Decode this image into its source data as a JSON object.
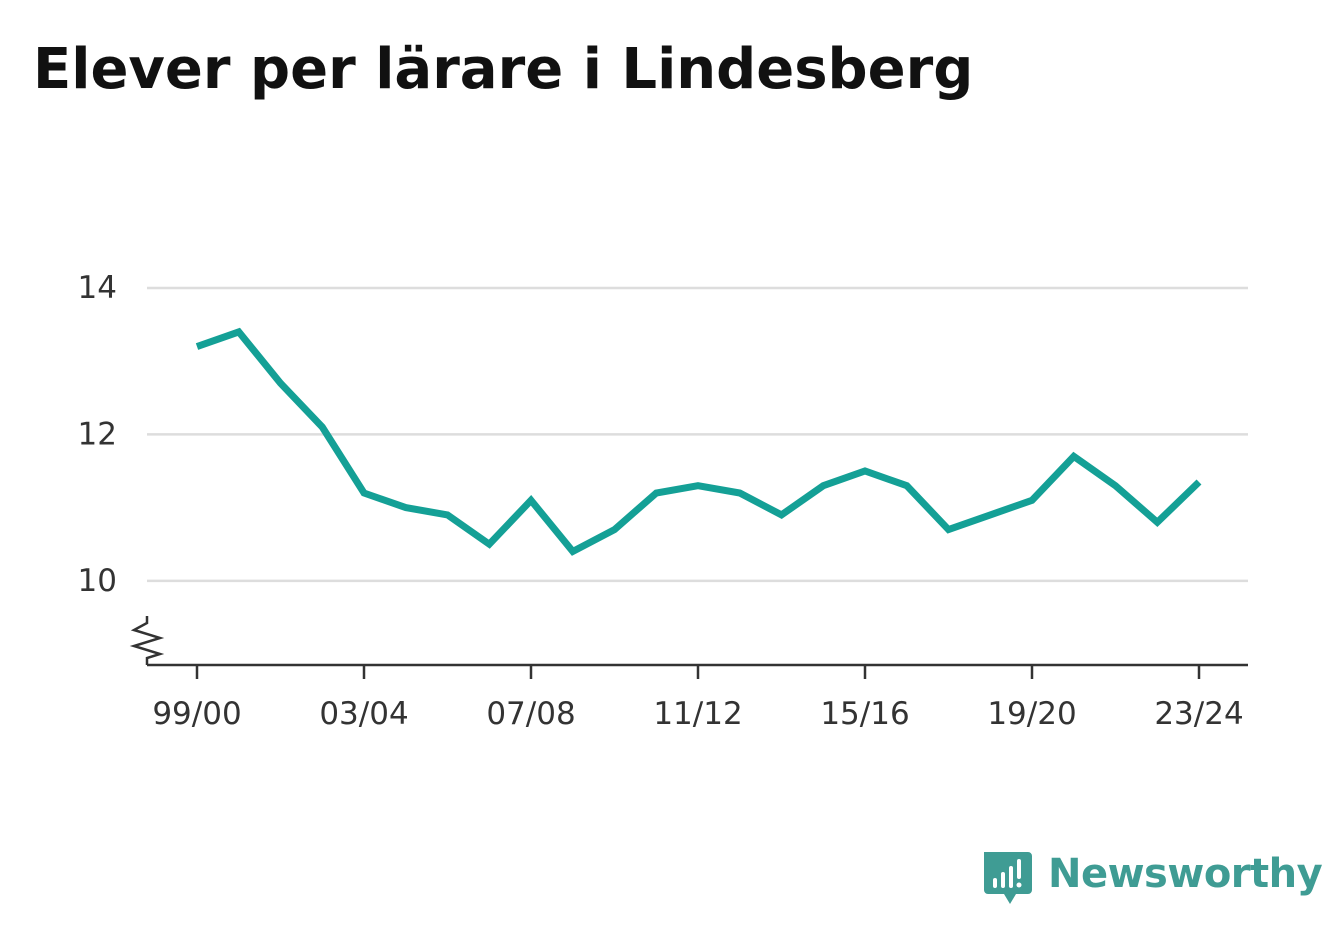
{
  "title": "Elever per lärare i Lindesberg",
  "brand": {
    "name": "Newsworthy",
    "color": "#3f9c94",
    "icon": "newsworthy-logo-icon"
  },
  "colors": {
    "line": "#14a096",
    "grid": "#dddddd",
    "axis": "#333333"
  },
  "chart_data": {
    "type": "line",
    "title": "Elever per lärare i Lindesberg",
    "xlabel": "",
    "ylabel": "",
    "ylim": [
      8.85,
      14
    ],
    "y_ticks": [
      10,
      12,
      14
    ],
    "y_tick_labels": [
      "10",
      "12",
      "14"
    ],
    "y_axis_break": true,
    "x_tick_labels": [
      "99/00",
      "03/04",
      "07/08",
      "11/12",
      "15/16",
      "19/20",
      "23/24"
    ],
    "x_tick_positions": [
      "99/00",
      "03/04",
      "07/08",
      "11/12",
      "15/16",
      "19/20",
      "23/24"
    ],
    "grid": true,
    "legend": "none",
    "categories": [
      "99/00",
      "00/01",
      "01/02",
      "02/03",
      "03/04",
      "04/05",
      "05/06",
      "06/07",
      "07/08",
      "08/09",
      "09/10",
      "10/11",
      "11/12",
      "12/13",
      "13/14",
      "14/15",
      "15/16",
      "16/17",
      "17/18",
      "18/19",
      "19/20",
      "20/21",
      "21/22",
      "22/23",
      "23/24"
    ],
    "values": [
      13.2,
      13.4,
      12.7,
      12.1,
      11.2,
      11.0,
      10.9,
      10.5,
      11.1,
      10.4,
      10.7,
      11.2,
      11.3,
      11.2,
      10.9,
      11.3,
      11.5,
      11.3,
      10.7,
      10.9,
      11.1,
      11.7,
      11.3,
      10.8,
      11.35
    ]
  }
}
